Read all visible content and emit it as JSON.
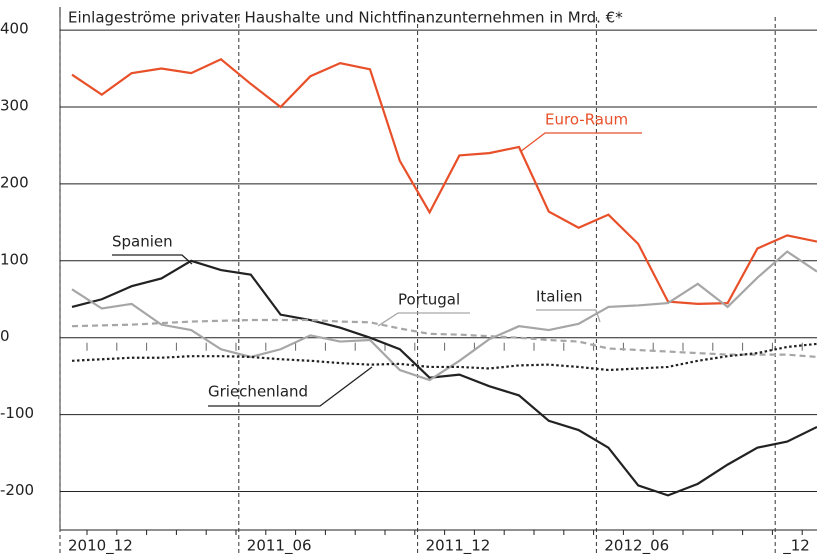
{
  "chart_data": {
    "type": "line",
    "title": "Einlageströme privater Haushalte und Nichtfinanzunternehmen in Mrd. €*",
    "categories": [
      "2010_12",
      null,
      null,
      null,
      null,
      null,
      "2011_06",
      null,
      null,
      null,
      null,
      null,
      "2011_12",
      null,
      null,
      null,
      null,
      null,
      "2012_06",
      null,
      null,
      null,
      null,
      null,
      "_12",
      null
    ],
    "ylim": [
      -250,
      430
    ],
    "yticks": [
      -200,
      -100,
      0,
      100,
      200,
      300,
      400
    ],
    "grid": true,
    "series": [
      {
        "name": "Euro-Raum",
        "color": "#e8502a",
        "dash": "solid",
        "values": [
          342,
          316,
          344,
          350,
          344,
          362,
          330,
          300,
          340,
          357,
          349,
          230,
          163,
          237,
          240,
          248,
          164,
          143,
          160,
          122,
          47,
          44,
          45,
          116,
          133,
          125
        ]
      },
      {
        "name": "Spanien",
        "color": "#222222",
        "dash": "solid",
        "values": [
          40,
          50,
          67,
          77,
          100,
          88,
          82,
          30,
          23,
          13,
          0,
          -15,
          -52,
          -48,
          -63,
          -75,
          -108,
          -120,
          -143,
          -192,
          -205,
          -190,
          -165,
          -143,
          -135,
          -116
        ]
      },
      {
        "name": "Italien",
        "color": "#a6a6a6",
        "dash": "solid",
        "values": [
          63,
          38,
          44,
          17,
          10,
          -15,
          -25,
          -15,
          3,
          -5,
          -3,
          -42,
          -55,
          -30,
          -2,
          15,
          10,
          18,
          40,
          42,
          45,
          70,
          40,
          78,
          112,
          86
        ]
      },
      {
        "name": "Portugal",
        "color": "#a6a6a6",
        "dash": "dashed",
        "values": [
          15,
          16,
          17,
          19,
          21,
          22,
          23,
          23,
          23,
          21,
          20,
          12,
          5,
          4,
          2,
          0,
          -3,
          -5,
          -14,
          -16,
          -18,
          -20,
          -22,
          -22,
          -22,
          -25
        ]
      },
      {
        "name": "Griechenland",
        "color": "#222222",
        "dash": "dotted",
        "values": [
          -30,
          -28,
          -26,
          -26,
          -24,
          -24,
          -25,
          -28,
          -30,
          -33,
          -35,
          -34,
          -38,
          -38,
          -40,
          -36,
          -35,
          -38,
          -42,
          -40,
          -38,
          -30,
          -24,
          -20,
          -12,
          -8
        ]
      }
    ]
  }
}
